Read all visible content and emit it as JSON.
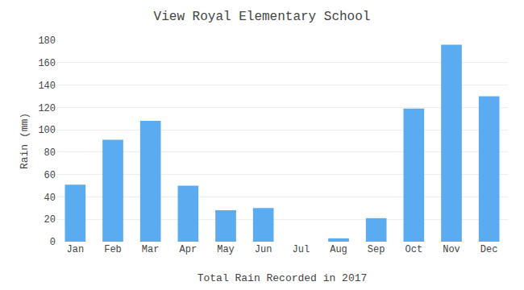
{
  "chart_data": {
    "type": "bar",
    "title": "View Royal Elementary School",
    "xlabel": "Total Rain Recorded in 2017",
    "ylabel": "Rain (mm)",
    "categories": [
      "Jan",
      "Feb",
      "Mar",
      "Apr",
      "May",
      "Jun",
      "Jul",
      "Aug",
      "Sep",
      "Oct",
      "Nov",
      "Dec"
    ],
    "values": [
      51,
      91,
      108,
      50,
      28,
      30,
      0,
      3,
      21,
      119,
      176,
      130
    ],
    "color": "#5aabf0",
    "ylim": [
      0,
      180
    ],
    "yticks": [
      0,
      20,
      40,
      60,
      80,
      100,
      120,
      140,
      160,
      180
    ],
    "grid": true
  }
}
